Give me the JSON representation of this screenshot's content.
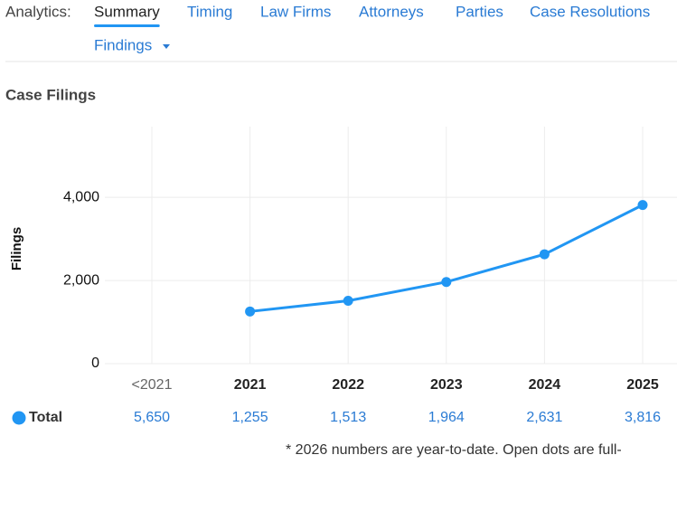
{
  "nav": {
    "label": "Analytics:",
    "tabs": [
      "Summary",
      "Timing",
      "Law Firms",
      "Attorneys",
      "Parties",
      "Case Resolutions"
    ],
    "more": "Findings"
  },
  "section_title": "Case Filings",
  "chart_data": {
    "type": "line",
    "ylabel": "Filings",
    "categories": [
      "<2021",
      "2021",
      "2022",
      "2023",
      "2024",
      "2025"
    ],
    "series": [
      {
        "name": "Total",
        "color": "#2196f3",
        "values": [
          null,
          1255,
          1513,
          1964,
          2631,
          3816
        ]
      }
    ],
    "ylim": [
      0,
      5700
    ],
    "yticks": [
      0,
      {
        "value": 2000,
        "label": "2,000"
      },
      {
        "value": 4000,
        "label": "4,000"
      }
    ],
    "grid": true,
    "table": {
      "label": "Total",
      "values": [
        5650,
        1255,
        1513,
        1964,
        2631,
        3816
      ],
      "value_labels": [
        "5,650",
        "1,255",
        "1,513",
        "1,964",
        "2,631",
        "3,816"
      ]
    },
    "footnote": "* 2026 numbers are year-to-date. Open dots are full-"
  }
}
